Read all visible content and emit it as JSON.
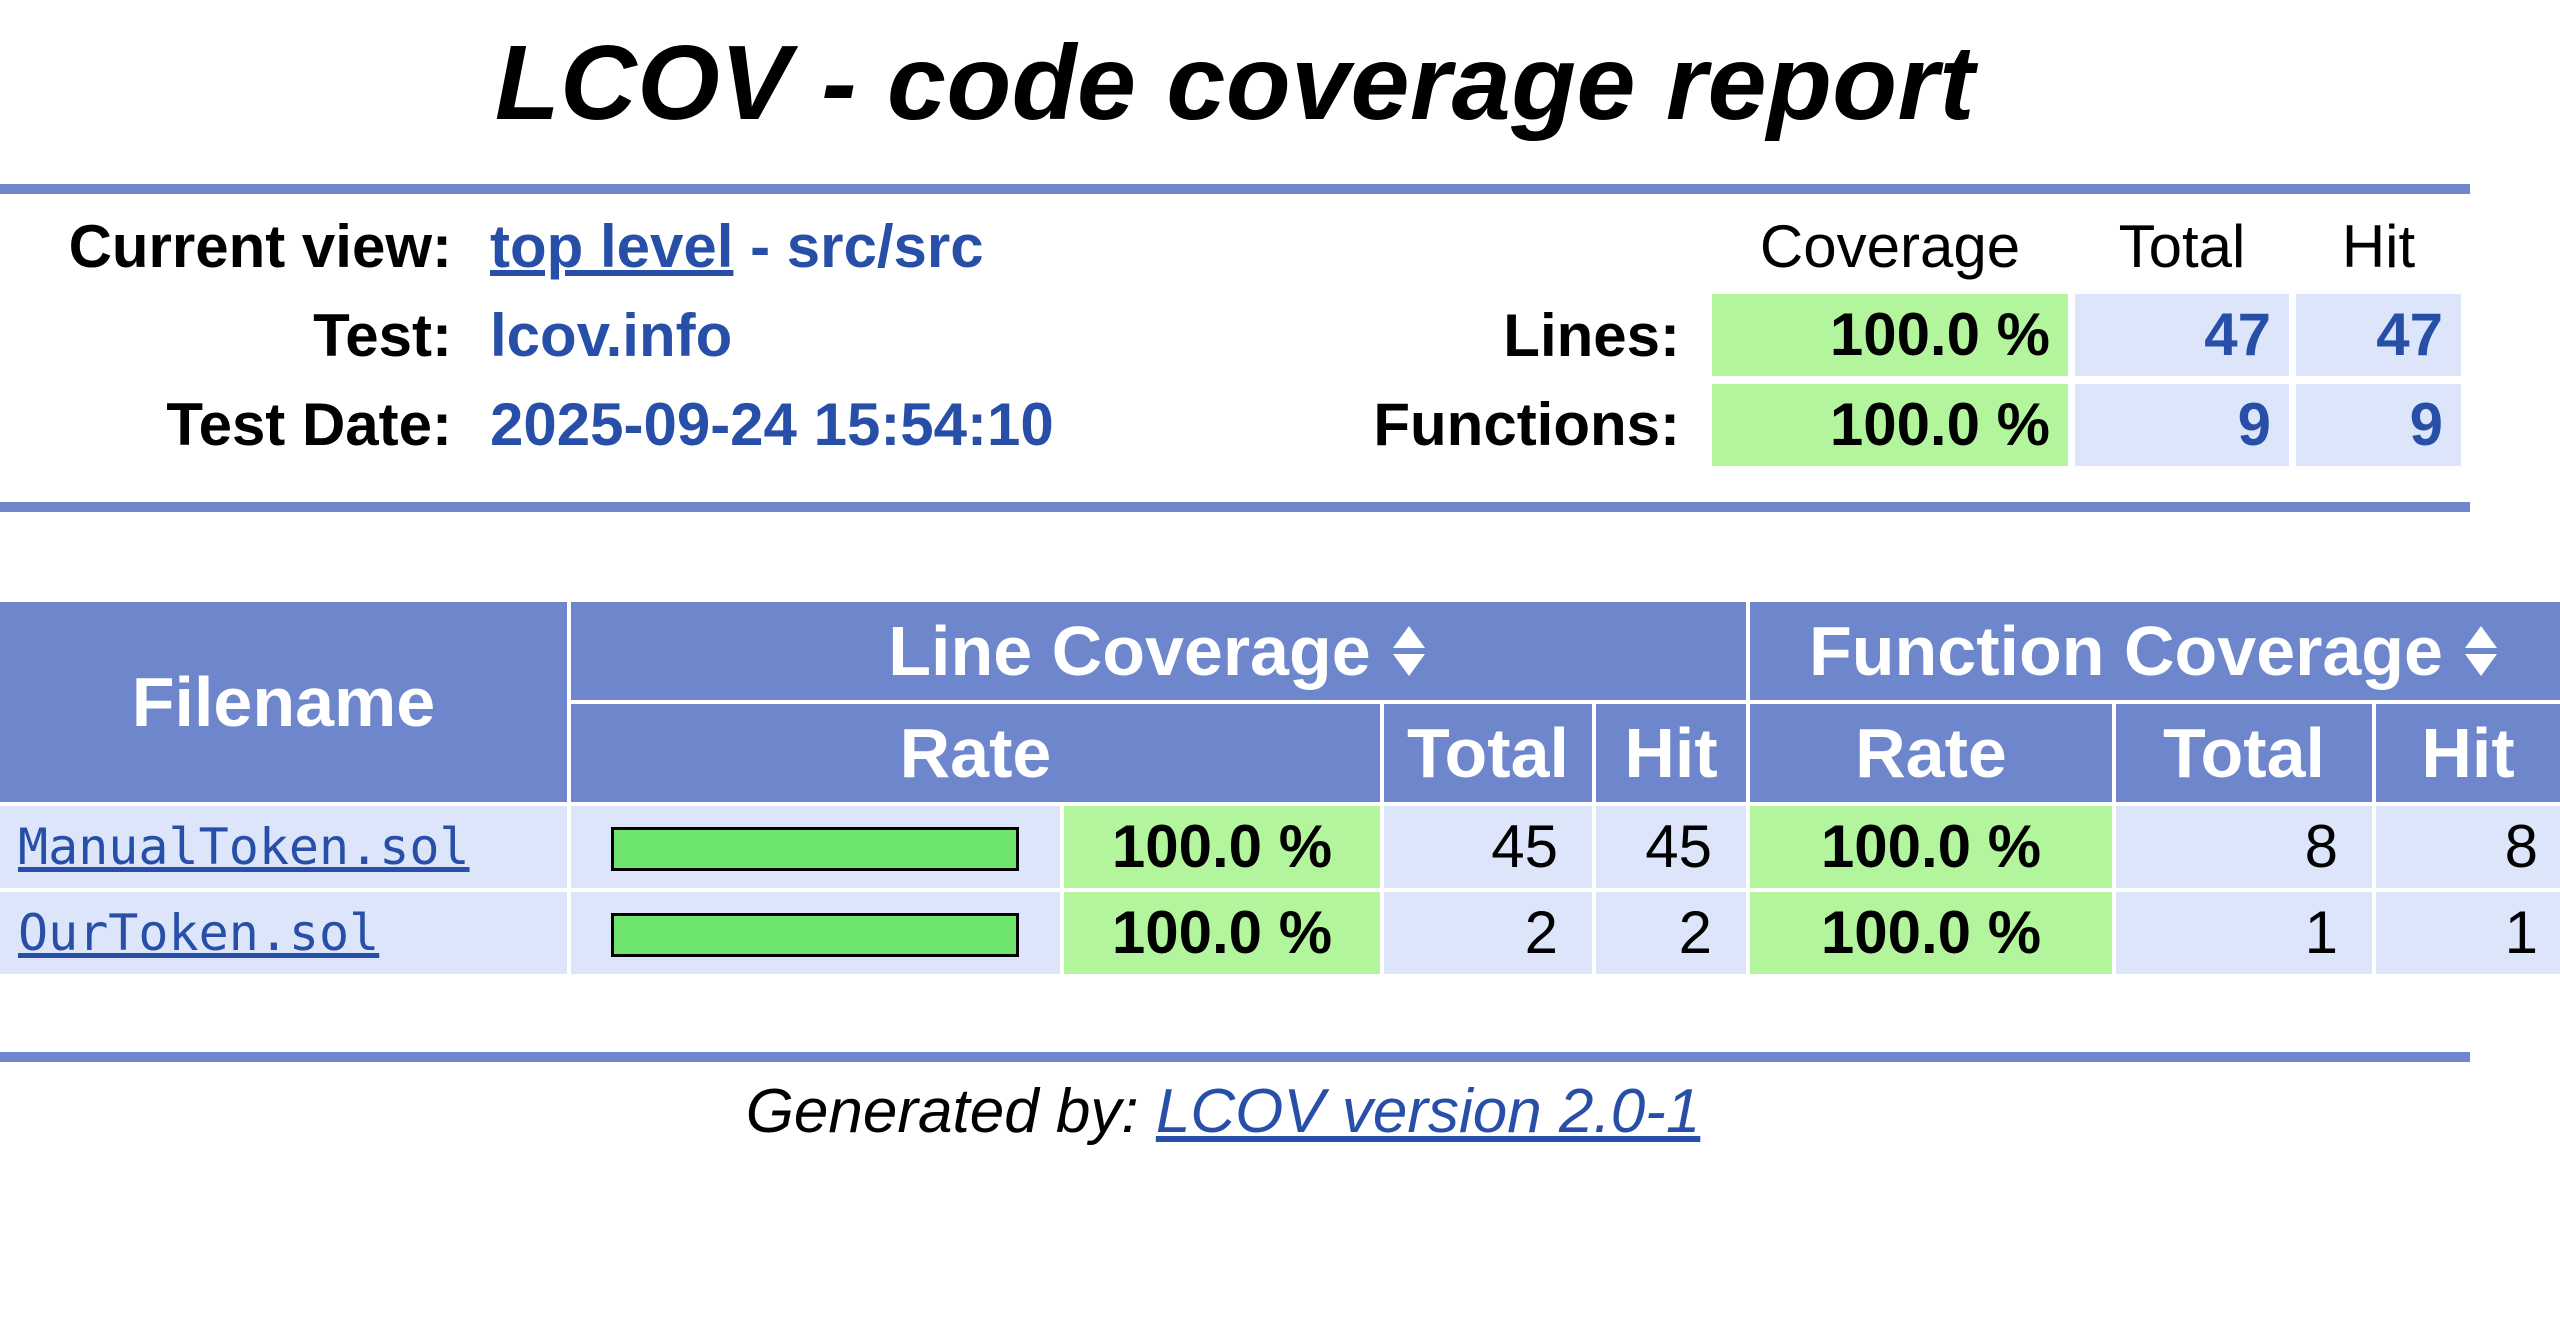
{
  "title": "LCOV - code coverage report",
  "info": {
    "current_view_label": "Current view:",
    "current_view_link": "top level",
    "current_view_rest": " - src/src",
    "test_label": "Test:",
    "test_value": "lcov.info",
    "date_label": "Test Date:",
    "date_value": "2025-09-24 15:54:10"
  },
  "summary": {
    "col_coverage": "Coverage",
    "col_total": "Total",
    "col_hit": "Hit",
    "lines_label": "Lines:",
    "lines_coverage": "100.0 %",
    "lines_total": "47",
    "lines_hit": "47",
    "functions_label": "Functions:",
    "functions_coverage": "100.0 %",
    "functions_total": "9",
    "functions_hit": "9"
  },
  "table": {
    "filename_header": "Filename",
    "line_coverage_header": "Line Coverage",
    "function_coverage_header": "Function Coverage",
    "rate_header": "Rate",
    "total_header": "Total",
    "hit_header": "Hit",
    "rows": [
      {
        "file": "ManualToken.sol",
        "line_rate": "100.0 %",
        "line_fraction": 1.0,
        "line_total": "45",
        "line_hit": "45",
        "func_rate": "100.0 %",
        "func_total": "8",
        "func_hit": "8"
      },
      {
        "file": "OurToken.sol",
        "line_rate": "100.0 %",
        "line_fraction": 1.0,
        "line_total": "2",
        "line_hit": "2",
        "func_rate": "100.0 %",
        "func_total": "1",
        "func_hit": "1"
      }
    ]
  },
  "footer": {
    "prefix": "Generated by: ",
    "link": "LCOV version 2.0-1"
  },
  "colors": {
    "header_bar": "#6e87cc",
    "link": "#284fa8",
    "high_coverage": "#b3f59c",
    "cell_blue": "#dce5f9",
    "bar_fill": "#6ee66e"
  },
  "icons": {
    "sort": "sort-arrows-icon"
  }
}
